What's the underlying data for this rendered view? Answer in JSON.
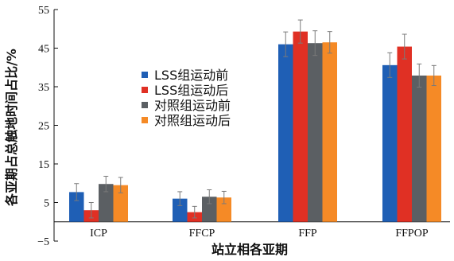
{
  "chart_data": {
    "type": "bar",
    "ylabel": "各亚期占总触地时间占比/%",
    "xlabel": "站立相各亚期",
    "categories": [
      "ICP",
      "FFCP",
      "FFP",
      "FFPOP"
    ],
    "ylim": [
      -5,
      55
    ],
    "yticks": [
      -5,
      5,
      15,
      25,
      35,
      45,
      55
    ],
    "error_bars": true,
    "grid": false,
    "legend_position": "upper-left-center",
    "series": [
      {
        "name": "LSS组运动前",
        "color": "#1f5fb5",
        "values": [
          7.7,
          6.0,
          46.0,
          40.6
        ],
        "errors": [
          2.2,
          1.8,
          3.2,
          3.2
        ]
      },
      {
        "name": "LSS组运动后",
        "color": "#e03024",
        "values": [
          3.0,
          2.5,
          49.3,
          45.4
        ],
        "errors": [
          2.0,
          1.5,
          3.0,
          3.2
        ]
      },
      {
        "name": "对照组运动前",
        "color": "#5b5f63",
        "values": [
          9.8,
          6.5,
          46.3,
          37.9
        ],
        "errors": [
          2.0,
          1.8,
          3.2,
          3.0
        ]
      },
      {
        "name": "对照组运动后",
        "color": "#f58a26",
        "values": [
          9.5,
          6.3,
          46.5,
          37.9
        ],
        "errors": [
          2.0,
          1.6,
          2.8,
          2.6
        ]
      }
    ]
  }
}
